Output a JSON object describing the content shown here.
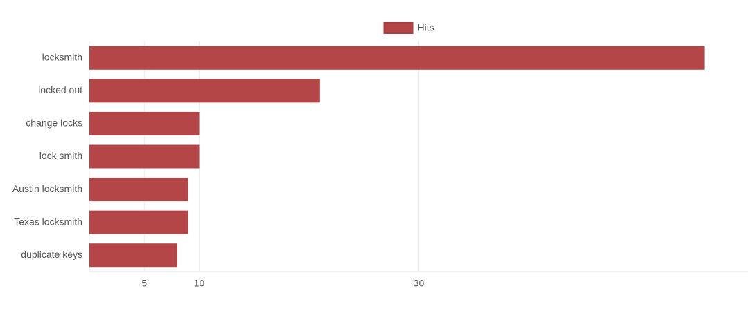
{
  "chart_data": {
    "type": "bar",
    "orientation": "horizontal",
    "categories": [
      "locksmith",
      "locked out",
      "change locks",
      "lock smith",
      "Austin locksmith",
      "Texas locksmith",
      "duplicate keys"
    ],
    "series": [
      {
        "name": "Hits",
        "color": "#b03c3d",
        "values": [
          56,
          21,
          10,
          10,
          9,
          9,
          8
        ]
      }
    ],
    "xlim": [
      0,
      60
    ],
    "xticks": [
      5,
      10,
      30
    ],
    "grid": true,
    "legend": "top"
  }
}
